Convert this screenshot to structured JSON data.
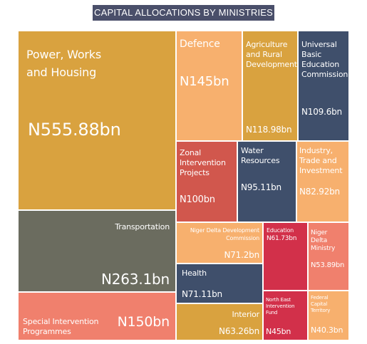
{
  "colors": {
    "gold": "#d9a23f",
    "olive": "#6b6c5f",
    "salmon": "#f0806d",
    "peach": "#f7b06e",
    "navy": "#3f4f6b",
    "red": "#d1574d",
    "crimson": "#d2304a"
  },
  "chart_data": {
    "type": "treemap",
    "title": "CAPITAL ALLOCATIONS BY MINISTRIES",
    "unit": "N billion",
    "items": [
      {
        "name": "Power, Works and Housing",
        "value": 555.88,
        "value_label": "N555.88bn"
      },
      {
        "name": "Transportation",
        "value": 263.1,
        "value_label": "N263.1bn"
      },
      {
        "name": "Special Intervention Programmes",
        "value": 150,
        "value_label": "N150bn"
      },
      {
        "name": "Defence",
        "value": 145,
        "value_label": "N145bn"
      },
      {
        "name": "Agriculture and Rural Development",
        "value": 118.98,
        "value_label": "N118.98bn"
      },
      {
        "name": "Universal Basic Education Commission",
        "value": 109.6,
        "value_label": "N109.6bn"
      },
      {
        "name": "Zonal Intervention Projects",
        "value": 100,
        "value_label": "N100bn"
      },
      {
        "name": "Water Resources",
        "value": 95.11,
        "value_label": "N95.11bn"
      },
      {
        "name": "Industry, Trade and Investment",
        "value": 82.92,
        "value_label": "N82.92bn"
      },
      {
        "name": "Niger Delta Development Commission",
        "value": 71.2,
        "value_label": "N71.2bn"
      },
      {
        "name": "Health",
        "value": 71.11,
        "value_label": "N71.11bn"
      },
      {
        "name": "Interior",
        "value": 63.26,
        "value_label": "N63.26bn"
      },
      {
        "name": "Education",
        "value": 61.73,
        "value_label": "N61.73bn"
      },
      {
        "name": "Niger Delta Ministry",
        "value": 53.89,
        "value_label": "N53.89bn"
      },
      {
        "name": "North East Intervention Fund",
        "value": 45,
        "value_label": "N45bn"
      },
      {
        "name": "Federal Capital Territory",
        "value": 40.3,
        "value_label": "N40.3bn"
      }
    ]
  },
  "labels": {
    "power_works": "Power, Works\nand Housing",
    "transportation": "Transportation",
    "special": "Special Intervention\nProgrammes",
    "defence": "Defence",
    "agriculture": "Agriculture\nand Rural\nDevelopment",
    "ubec": "Universal\nBasic\nEducation\nCommission",
    "zonal": "Zonal\nIntervention\nProjects",
    "water": "Water\nResources",
    "industry": "Industry,\nTrade and\nInvestment",
    "nddc": "Niger Delta Development\nCommission",
    "health": "Health",
    "interior": "Interior",
    "education": "Education",
    "niger_ministry": "Niger\nDelta\nMinistry",
    "north_east": "North East\nIntervention\nFund",
    "fct": "Federal\nCapital\nTerritory"
  }
}
